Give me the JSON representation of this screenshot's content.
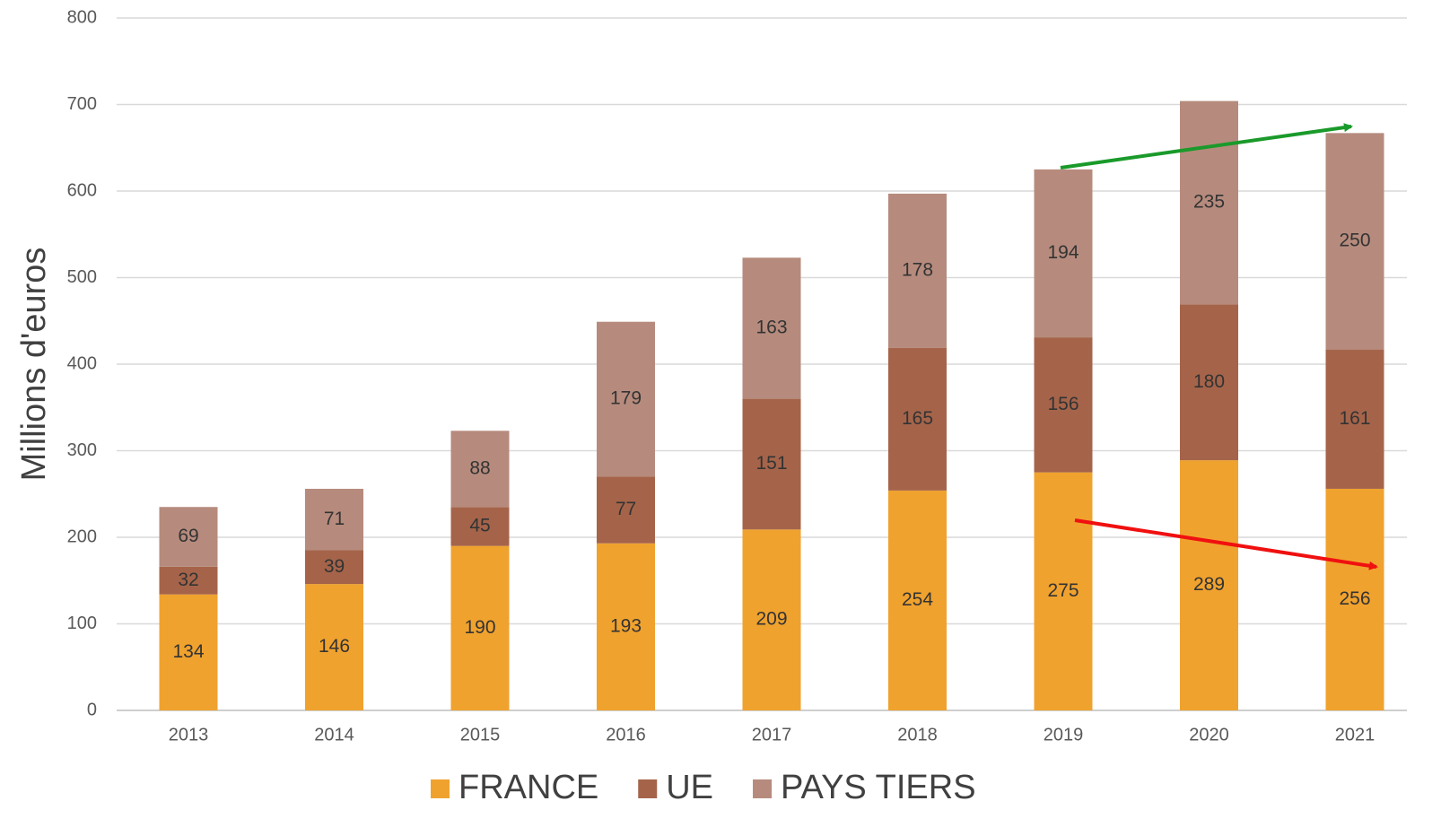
{
  "chart_data": {
    "type": "stacked_bar",
    "y_axis_label": "Millions d'euros",
    "categories": [
      "2013",
      "2014",
      "2015",
      "2016",
      "2017",
      "2018",
      "2019",
      "2020",
      "2021"
    ],
    "series": [
      {
        "name": "FRANCE",
        "color": "#f0a22e",
        "values": [
          134,
          146,
          190,
          193,
          209,
          254,
          275,
          289,
          256
        ]
      },
      {
        "name": "UE",
        "color": "#a5644a",
        "values": [
          32,
          39,
          45,
          77,
          151,
          165,
          156,
          180,
          161
        ]
      },
      {
        "name": "PAYS TIERS",
        "color": "#b68b7d",
        "values": [
          69,
          71,
          88,
          179,
          163,
          178,
          194,
          235,
          250
        ]
      }
    ],
    "ylim": [
      0,
      800
    ],
    "yticks": [
      0,
      100,
      200,
      300,
      400,
      500,
      600,
      700,
      800
    ],
    "grid": true,
    "legend": "bottom"
  }
}
